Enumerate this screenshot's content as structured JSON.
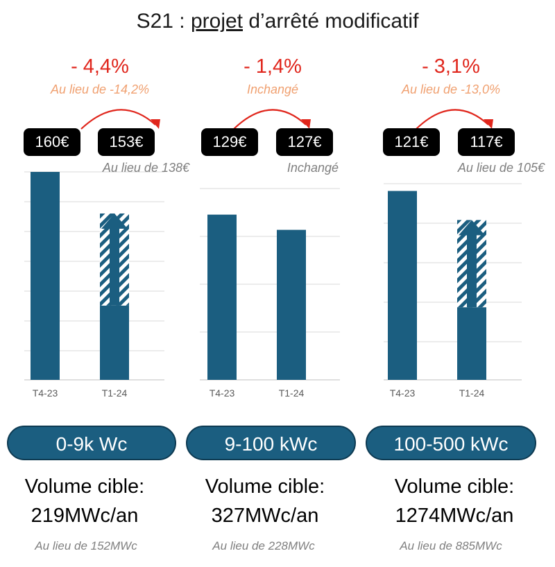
{
  "title_prefix": "S21 : ",
  "title_underlined": "projet",
  "title_suffix": " d’arrêté modificatif",
  "colors": {
    "bar": "#1b5e80",
    "red": "#e0261c",
    "orange_note": "#f0a070",
    "grid": "#d9d9d9"
  },
  "chart_data": [
    {
      "type": "bar",
      "categories": [
        "T4-23",
        "T1-24"
      ],
      "values": [
        7.0,
        2.5
      ],
      "hatched_increase": [
        0,
        3.1
      ],
      "ylim": [
        0,
        7
      ],
      "grid": true,
      "change": "- 4,4%",
      "change_note": "Au lieu de -14,2%",
      "price_before": "160€",
      "price_after": "153€",
      "price_note": "Au lieu de 138€",
      "segment": "0-9k Wc",
      "volume_label": "Volume cible:",
      "volume_value": "219MWc/an",
      "volume_note": "Au lieu de 152MWc"
    },
    {
      "type": "bar",
      "categories": [
        "T4-23",
        "T1-24"
      ],
      "values": [
        3.8,
        3.45
      ],
      "hatched_increase": [
        0,
        0
      ],
      "ylim": [
        0,
        4.4
      ],
      "grid": true,
      "change": "- 1,4%",
      "change_note": "Inchangé",
      "price_before": "129€",
      "price_after": "127€",
      "price_note": "Inchangé",
      "segment": "9-100 kWc",
      "volume_label": "Volume cible:",
      "volume_value": "327MWc/an",
      "volume_note": "Au lieu de 228MWc"
    },
    {
      "type": "bar",
      "categories": [
        "T4-23",
        "T1-24"
      ],
      "values": [
        5.2,
        2.0
      ],
      "hatched_increase": [
        0,
        2.4
      ],
      "ylim": [
        0,
        5.4
      ],
      "grid": true,
      "change": "- 3,1%",
      "change_note": "Au lieu de -13,0%",
      "price_before": "121€",
      "price_after": "117€",
      "price_note": "Au lieu de 105€",
      "segment": "100-500 kWc",
      "volume_label": "Volume cible:",
      "volume_value": "1274MWc/an",
      "volume_note": "Au lieu de 885MWc"
    }
  ]
}
